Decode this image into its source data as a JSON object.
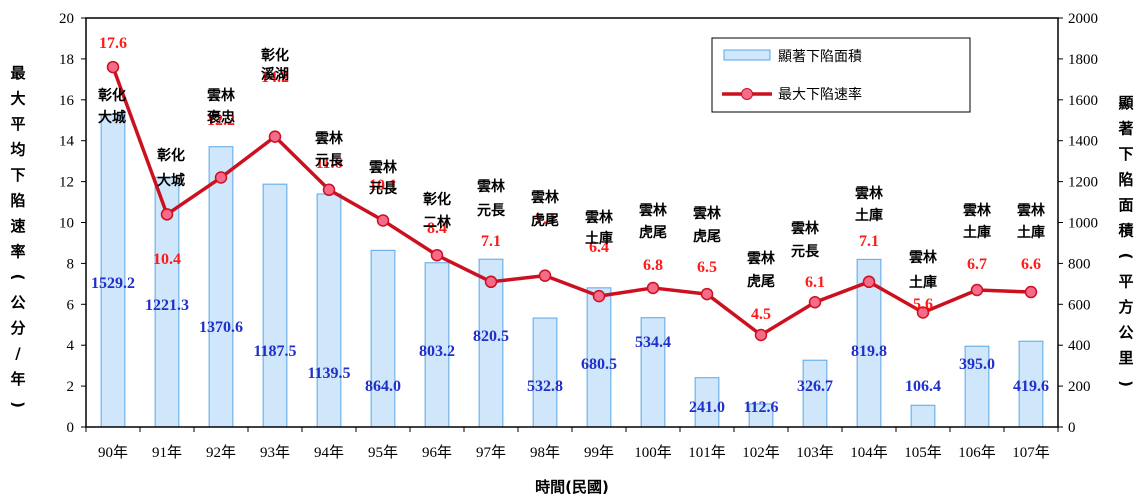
{
  "chart_data": {
    "type": "bar-line",
    "categories": [
      "90年",
      "91年",
      "92年",
      "93年",
      "94年",
      "95年",
      "96年",
      "97年",
      "98年",
      "99年",
      "100年",
      "101年",
      "102年",
      "103年",
      "104年",
      "105年",
      "106年",
      "107年"
    ],
    "bar_series": {
      "name": "顯著下陷面積",
      "values": [
        1529.2,
        1221.3,
        1370.6,
        1187.5,
        1139.5,
        864.0,
        803.2,
        820.5,
        532.8,
        680.5,
        534.4,
        241.0,
        112.6,
        326.7,
        819.8,
        106.4,
        395.0,
        419.6
      ],
      "labels": [
        "1529.2",
        "1221.3",
        "1370.6",
        "1187.5",
        "1139.5",
        "864.0",
        "803.2",
        "820.5",
        "532.8",
        "680.5",
        "534.4",
        "241.0",
        "112.6",
        "326.7",
        "819.8",
        "106.4",
        "395.0",
        "419.6"
      ],
      "color": "#cfe6fb",
      "edge": "#5aa7e6"
    },
    "line_series": {
      "name": "最大下陷速率",
      "values": [
        17.6,
        10.4,
        12.2,
        14.2,
        11.6,
        10.1,
        8.4,
        7.1,
        7.4,
        6.4,
        6.8,
        6.5,
        4.5,
        6.1,
        7.1,
        5.6,
        6.7,
        6.6
      ],
      "labels": [
        "17.6",
        "10.4",
        "12.2",
        "14.2",
        "11.6",
        "10.1",
        "8.4",
        "7.1",
        "7.4",
        "6.4",
        "6.8",
        "6.5",
        "4.5",
        "6.1",
        "7.1",
        "5.6",
        "6.7",
        "6.6"
      ],
      "color": "#cc1020",
      "marker_fill": "#f56b8a"
    },
    "locations": [
      [
        "彰化",
        "大城"
      ],
      [
        "彰化",
        "大城"
      ],
      [
        "雲林",
        "褒忠"
      ],
      [
        "彰化",
        "溪湖"
      ],
      [
        "雲林",
        "元長"
      ],
      [
        "雲林",
        "元長"
      ],
      [
        "彰化",
        "二林"
      ],
      [
        "雲林",
        "元長"
      ],
      [
        "雲林",
        "虎尾"
      ],
      [
        "雲林",
        "土庫"
      ],
      [
        "雲林",
        "虎尾"
      ],
      [
        "雲林",
        "虎尾"
      ],
      [
        "雲林",
        "虎尾"
      ],
      [
        "雲林",
        "元長"
      ],
      [
        "雲林",
        "土庫"
      ],
      [
        "雲林",
        "土庫"
      ],
      [
        "雲林",
        "土庫"
      ],
      [
        "雲林",
        "土庫"
      ]
    ],
    "y_left": {
      "label": "最大平均下陷速率(公分/年)",
      "min": 0,
      "max": 20,
      "step": 2,
      "ticks": [
        "0",
        "2",
        "4",
        "6",
        "8",
        "10",
        "12",
        "14",
        "16",
        "18",
        "20"
      ]
    },
    "y_right": {
      "label": "顯著下陷面積(平方公里)",
      "min": 0,
      "max": 2000,
      "step": 200,
      "ticks": [
        "0",
        "200",
        "400",
        "600",
        "800",
        "1000",
        "1200",
        "1400",
        "1600",
        "1800",
        "2000"
      ]
    },
    "xlabel": "時間(民國)",
    "legend": {
      "position": "top-right",
      "items": [
        "顯著下陷面積",
        "最大下陷速率"
      ]
    },
    "grid": false
  }
}
